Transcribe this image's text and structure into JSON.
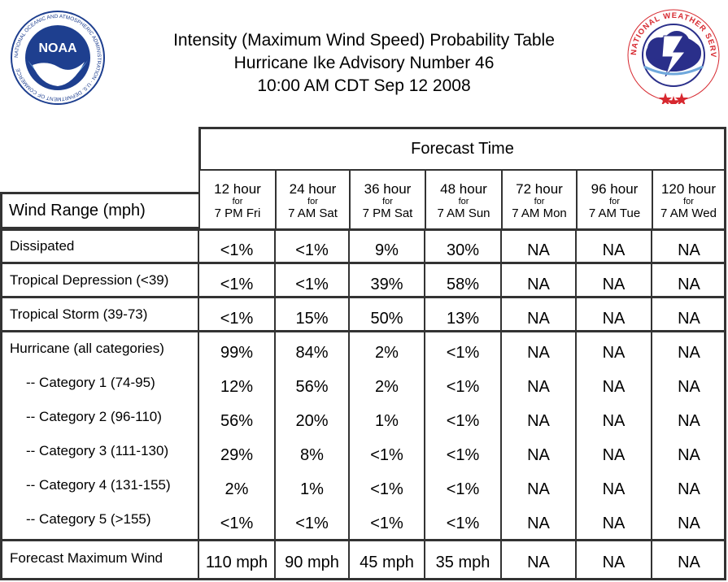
{
  "header": {
    "title_line1": "Intensity (Maximum Wind Speed) Probability Table",
    "title_line2": "Hurricane Ike Advisory Number 46",
    "title_line3": "10:00 AM CDT Sep 12 2008"
  },
  "logos": {
    "left": {
      "name": "NOAA",
      "ring_text": "NATIONAL OCEANIC AND ATMOSPHERIC ADMINISTRATION · U.S. DEPARTMENT OF COMMERCE"
    },
    "right": {
      "name": "NATIONAL WEATHER SERVICE"
    }
  },
  "colors": {
    "border": "#333333",
    "noaa_blue": "#1e3f8f",
    "nws_red": "#d7282f",
    "nws_cloud": "#2a2f8a"
  },
  "chart_data": {
    "type": "table",
    "title": "Intensity (Maximum Wind Speed) Probability Table",
    "column_group": "Forecast Time",
    "row_header": "Wind Range (mph)",
    "columns": [
      {
        "hour": "12 hour",
        "for": "for",
        "time": "7 PM Fri"
      },
      {
        "hour": "24 hour",
        "for": "for",
        "time": "7 AM Sat"
      },
      {
        "hour": "36 hour",
        "for": "for",
        "time": "7 PM Sat"
      },
      {
        "hour": "48 hour",
        "for": "for",
        "time": "7 AM Sun"
      },
      {
        "hour": "72 hour",
        "for": "for",
        "time": "7 AM Mon"
      },
      {
        "hour": "96 hour",
        "for": "for",
        "time": "7 AM Tue"
      },
      {
        "hour": "120 hour",
        "for": "for",
        "time": "7 AM Wed"
      }
    ],
    "rows": [
      {
        "label": "Dissipated",
        "values": [
          "<1%",
          "<1%",
          "9%",
          "30%",
          "NA",
          "NA",
          "NA"
        ]
      },
      {
        "label": "Tropical Depression (<39)",
        "values": [
          "<1%",
          "<1%",
          "39%",
          "58%",
          "NA",
          "NA",
          "NA"
        ]
      },
      {
        "label": "Tropical Storm (39-73)",
        "values": [
          "<1%",
          "15%",
          "50%",
          "13%",
          "NA",
          "NA",
          "NA"
        ]
      },
      {
        "label": "Hurricane (all categories)",
        "values": [
          "99%",
          "84%",
          "2%",
          "<1%",
          "NA",
          "NA",
          "NA"
        ]
      },
      {
        "label": "-- Category 1 (74-95)",
        "values": [
          "12%",
          "56%",
          "2%",
          "<1%",
          "NA",
          "NA",
          "NA"
        ]
      },
      {
        "label": "-- Category 2 (96-110)",
        "values": [
          "56%",
          "20%",
          "1%",
          "<1%",
          "NA",
          "NA",
          "NA"
        ]
      },
      {
        "label": "-- Category 3 (111-130)",
        "values": [
          "29%",
          "8%",
          "<1%",
          "<1%",
          "NA",
          "NA",
          "NA"
        ]
      },
      {
        "label": "-- Category 4 (131-155)",
        "values": [
          "2%",
          "1%",
          "<1%",
          "<1%",
          "NA",
          "NA",
          "NA"
        ]
      },
      {
        "label": "-- Category 5 (>155)",
        "values": [
          "<1%",
          "<1%",
          "<1%",
          "<1%",
          "NA",
          "NA",
          "NA"
        ]
      },
      {
        "label": "Forecast Maximum Wind",
        "values": [
          "110 mph",
          "90 mph",
          "45 mph",
          "35 mph",
          "NA",
          "NA",
          "NA"
        ]
      }
    ]
  }
}
